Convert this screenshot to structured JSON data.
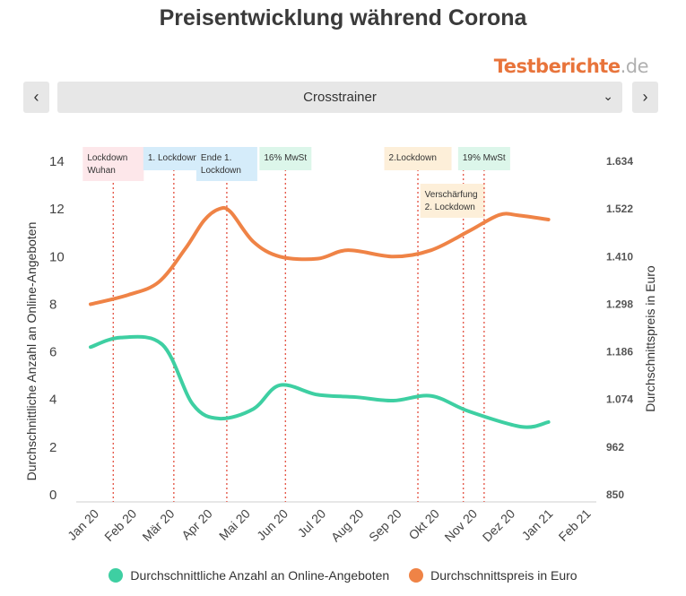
{
  "title": "Preisentwicklung während Corona",
  "brand": {
    "main": "Testberichte",
    "suffix": ".de"
  },
  "nav": {
    "prev_icon": "‹",
    "next_icon": "›",
    "selected": "Crosstrainer",
    "dropdown_icon": "⌄"
  },
  "chart_data": {
    "type": "line",
    "categories": [
      "Jan 20",
      "Feb 20",
      "Mär 20",
      "Apr 20",
      "Mai 20",
      "Jun 20",
      "Jul 20",
      "Aug 20",
      "Sep 20",
      "Okt 20",
      "Nov 20",
      "Dez 20",
      "Jan 21",
      "Feb 21"
    ],
    "y_left": {
      "label": "Durchschnittliche Anzahl an Online-Angeboten",
      "range": [
        0,
        14
      ],
      "ticks": [
        "0",
        "2",
        "4",
        "6",
        "8",
        "10",
        "12",
        "14"
      ]
    },
    "y_right": {
      "label": "Durchschnittspreis in Euro",
      "range": [
        850,
        1634
      ],
      "ticks": [
        "850",
        "962",
        "1.074",
        "1.186",
        "1.298",
        "1.410",
        "1.522",
        "1.634"
      ]
    },
    "series": [
      {
        "name": "Durchschnittliche Anzahl an Online-Angeboten",
        "axis": "left",
        "color": "#3ecfa2",
        "x": [
          0,
          0.8,
          1.9,
          2.7,
          3.4,
          4.3,
          5.0,
          6.0,
          7.0,
          8.0,
          9.0,
          10.0,
          11.4,
          12.1
        ],
        "values": [
          6.2,
          6.6,
          6.3,
          3.8,
          3.2,
          3.6,
          4.6,
          4.2,
          4.1,
          3.95,
          4.15,
          3.5,
          2.85,
          3.05
        ]
      },
      {
        "name": "Durchschnittspreis in Euro",
        "axis": "right",
        "color": "#ef8346",
        "x": [
          0,
          1.0,
          1.8,
          2.5,
          3.0,
          3.4,
          3.7,
          4.3,
          5.0,
          6.0,
          6.8,
          8.0,
          9.0,
          10.0,
          10.8,
          11.3,
          12.1
        ],
        "values": [
          1298,
          1320,
          1350,
          1428,
          1495,
          1522,
          1515,
          1445,
          1410,
          1405,
          1425,
          1410,
          1425,
          1470,
          1508,
          1507,
          1497
        ]
      }
    ],
    "events": [
      {
        "label": "Lockdown\nWuhan",
        "x": 0.6,
        "bg": "#fde7ea"
      },
      {
        "label": "1. Lockdown",
        "x": 2.2,
        "bg": "#d5ecfa"
      },
      {
        "label": "Ende 1.\nLockdown",
        "x": 3.6,
        "bg": "#d5ecfa"
      },
      {
        "label": "16% MwSt",
        "x": 5.15,
        "bg": "#dcf6ea"
      },
      {
        "label": "2.Lockdown",
        "x": 8.65,
        "bg": "#fdefd9"
      },
      {
        "label": "Verschärfung\n2. Lockdown",
        "x": 9.85,
        "bg": "#fdefd9"
      },
      {
        "label": "19% MwSt",
        "x": 10.4,
        "bg": "#dcf6ea"
      }
    ],
    "grid": false,
    "legend_position": "bottom"
  }
}
